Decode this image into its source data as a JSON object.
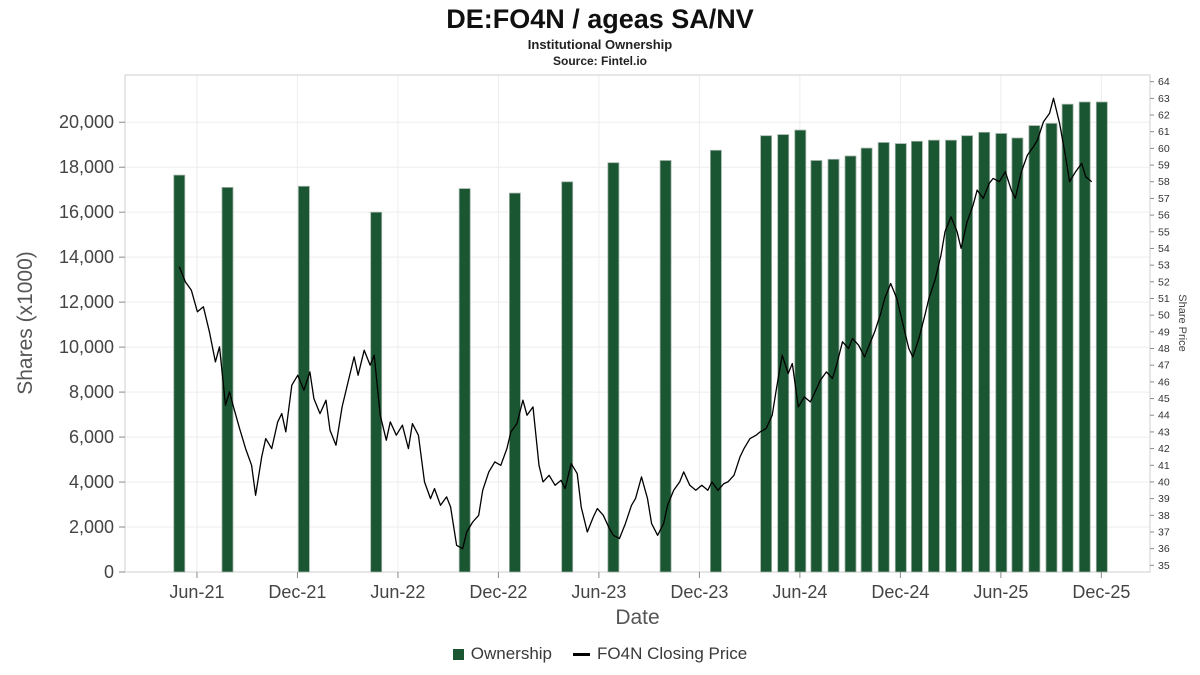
{
  "header": {
    "title": "DE:FO4N / ageas SA/NV",
    "subtitle": "Institutional Ownership",
    "source": "Source: Fintel.io"
  },
  "legend": {
    "ownership": "Ownership",
    "price": "FO4N Closing Price"
  },
  "chart_data": {
    "type": "bar",
    "title": "DE:FO4N / ageas SA/NV",
    "subtitle": "Institutional Ownership",
    "source": "Source: Fintel.io",
    "xlabel": "Date",
    "ylabel_left": "Shares (x1000)",
    "ylabel_right": "Share Price",
    "grid": true,
    "legend_position": "bottom",
    "x_domain": [
      2021.1,
      2026.2
    ],
    "x_ticks": [
      {
        "label": "Jun-21",
        "t": 2021.458
      },
      {
        "label": "Dec-21",
        "t": 2021.958
      },
      {
        "label": "Jun-22",
        "t": 2022.458
      },
      {
        "label": "Dec-22",
        "t": 2022.958
      },
      {
        "label": "Jun-23",
        "t": 2023.458
      },
      {
        "label": "Dec-23",
        "t": 2023.958
      },
      {
        "label": "Jun-24",
        "t": 2024.458
      },
      {
        "label": "Dec-24",
        "t": 2024.958
      },
      {
        "label": "Jun-25",
        "t": 2025.458
      },
      {
        "label": "Dec-25",
        "t": 2025.958
      }
    ],
    "y_left": {
      "domain": [
        0,
        22100
      ],
      "ticks": [
        0,
        2000,
        4000,
        6000,
        8000,
        10000,
        12000,
        14000,
        16000,
        18000,
        20000
      ],
      "labels": [
        "0",
        "2,000",
        "4,000",
        "6,000",
        "8,000",
        "10,000",
        "12,000",
        "14,000",
        "16,000",
        "18,000",
        "20,000"
      ]
    },
    "y_right": {
      "domain": [
        34.6,
        64.4
      ],
      "ticks": [
        35,
        36,
        37,
        38,
        39,
        40,
        41,
        42,
        43,
        44,
        45,
        46,
        47,
        48,
        49,
        50,
        51,
        52,
        53,
        54,
        55,
        56,
        57,
        58,
        59,
        60,
        61,
        62,
        63,
        64
      ]
    },
    "ownership_bars": {
      "name": "Ownership",
      "color": "#1a5632",
      "unit": "shares x1000",
      "dates": [
        "May-21",
        "Aug-21",
        "Dec-21",
        "May-22",
        "Oct-22",
        "Jan-23",
        "Apr-23",
        "Jul-23",
        "Oct-23",
        "Jan-24",
        "Apr-24",
        "May-24",
        "Jun-24",
        "Jul-24",
        "Aug-24",
        "Sep-24",
        "Oct-24",
        "Nov-24",
        "Dec-24",
        "Jan-25",
        "Feb-25",
        "Mar-25",
        "Apr-25",
        "May-25",
        "Jun-25",
        "Jul-25",
        "Aug-25",
        "Sep-25",
        "Oct-25",
        "Nov-25",
        "Dec-25"
      ],
      "t": [
        2021.37,
        2021.61,
        2021.99,
        2022.35,
        2022.79,
        2023.04,
        2023.3,
        2023.53,
        2023.79,
        2024.04,
        2024.29,
        2024.375,
        2024.46,
        2024.54,
        2024.625,
        2024.71,
        2024.79,
        2024.875,
        2024.96,
        2025.04,
        2025.125,
        2025.21,
        2025.29,
        2025.375,
        2025.46,
        2025.54,
        2025.625,
        2025.71,
        2025.79,
        2025.875,
        2025.96
      ],
      "values": [
        17650,
        17100,
        17150,
        16000,
        17050,
        16850,
        17350,
        18200,
        18300,
        18750,
        19400,
        19450,
        19650,
        18300,
        18350,
        18500,
        18850,
        19100,
        19050,
        19150,
        19200,
        19200,
        19400,
        19550,
        19500,
        19300,
        19850,
        19950,
        20800,
        20900,
        20900
      ]
    },
    "closing_price": {
      "name": "FO4N Closing Price",
      "color": "#000000",
      "t": [
        2021.37,
        2021.4,
        2021.43,
        2021.46,
        2021.49,
        2021.52,
        2021.55,
        2021.57,
        2021.6,
        2021.62,
        2021.64,
        2021.67,
        2021.7,
        2021.73,
        2021.75,
        2021.78,
        2021.8,
        2021.83,
        2021.86,
        2021.88,
        2021.9,
        2021.93,
        2021.96,
        2021.99,
        2022.02,
        2022.04,
        2022.07,
        2022.1,
        2022.12,
        2022.15,
        2022.18,
        2022.21,
        2022.24,
        2022.26,
        2022.29,
        2022.32,
        2022.34,
        2022.37,
        2022.4,
        2022.42,
        2022.45,
        2022.48,
        2022.51,
        2022.53,
        2022.56,
        2022.59,
        2022.62,
        2022.64,
        2022.67,
        2022.7,
        2022.72,
        2022.75,
        2022.78,
        2022.8,
        2022.83,
        2022.86,
        2022.88,
        2022.91,
        2022.94,
        2022.97,
        2023.0,
        2023.02,
        2023.05,
        2023.08,
        2023.1,
        2023.13,
        2023.16,
        2023.18,
        2023.21,
        2023.24,
        2023.27,
        2023.29,
        2023.32,
        2023.35,
        2023.37,
        2023.4,
        2023.43,
        2023.45,
        2023.48,
        2023.51,
        2023.53,
        2023.56,
        2023.59,
        2023.62,
        2023.64,
        2023.67,
        2023.7,
        2023.72,
        2023.75,
        2023.78,
        2023.8,
        2023.83,
        2023.86,
        2023.88,
        2023.91,
        2023.94,
        2023.97,
        2024.0,
        2024.02,
        2024.05,
        2024.08,
        2024.1,
        2024.13,
        2024.16,
        2024.18,
        2024.21,
        2024.24,
        2024.26,
        2024.29,
        2024.32,
        2024.34,
        2024.37,
        2024.4,
        2024.42,
        2024.45,
        2024.48,
        2024.51,
        2024.53,
        2024.56,
        2024.59,
        2024.62,
        2024.64,
        2024.67,
        2024.7,
        2024.72,
        2024.75,
        2024.78,
        2024.8,
        2024.83,
        2024.86,
        2024.88,
        2024.91,
        2024.94,
        2024.97,
        2025.0,
        2025.02,
        2025.05,
        2025.08,
        2025.1,
        2025.13,
        2025.16,
        2025.18,
        2025.21,
        2025.24,
        2025.26,
        2025.29,
        2025.32,
        2025.34,
        2025.37,
        2025.4,
        2025.42,
        2025.45,
        2025.48,
        2025.51,
        2025.53,
        2025.56,
        2025.59,
        2025.62,
        2025.64,
        2025.67,
        2025.7,
        2025.72,
        2025.75,
        2025.78,
        2025.8,
        2025.83,
        2025.86,
        2025.88,
        2025.91
      ],
      "price": [
        52.9,
        52.0,
        51.5,
        50.2,
        50.5,
        49.0,
        47.2,
        48.1,
        44.6,
        45.4,
        44.5,
        43.2,
        42.0,
        41.0,
        39.2,
        41.5,
        42.6,
        42.0,
        43.6,
        44.1,
        43.0,
        45.8,
        46.4,
        45.5,
        46.6,
        45.0,
        44.1,
        44.9,
        43.1,
        42.2,
        44.5,
        46.0,
        47.5,
        46.4,
        47.9,
        47.0,
        47.6,
        44.0,
        42.5,
        43.6,
        42.8,
        43.4,
        42.0,
        43.5,
        42.8,
        40.0,
        39.0,
        39.6,
        38.6,
        39.1,
        38.5,
        36.2,
        36.0,
        37.0,
        37.6,
        38.0,
        39.5,
        40.6,
        41.2,
        41.0,
        42.0,
        43.0,
        43.5,
        44.9,
        44.0,
        44.5,
        41.0,
        40.0,
        40.4,
        39.8,
        40.1,
        39.6,
        41.1,
        40.5,
        38.5,
        37.0,
        37.9,
        38.4,
        38.0,
        37.2,
        36.8,
        36.6,
        37.5,
        38.6,
        39.0,
        40.3,
        39.0,
        37.5,
        36.8,
        37.5,
        38.6,
        39.5,
        40.0,
        40.6,
        39.8,
        39.5,
        39.8,
        39.5,
        40.0,
        39.5,
        39.9,
        40.0,
        40.4,
        41.5,
        42.0,
        42.6,
        42.8,
        43.0,
        43.2,
        44.0,
        45.5,
        47.6,
        46.5,
        47.1,
        44.5,
        45.1,
        44.8,
        45.3,
        46.1,
        46.6,
        46.2,
        47.0,
        48.4,
        48.0,
        48.6,
        48.2,
        47.5,
        48.1,
        49.0,
        50.1,
        51.0,
        51.9,
        51.0,
        49.5,
        48.0,
        47.5,
        48.6,
        50.0,
        51.0,
        52.1,
        53.6,
        55.0,
        55.9,
        55.0,
        54.0,
        55.6,
        56.6,
        57.5,
        57.0,
        57.9,
        58.2,
        58.0,
        58.6,
        57.5,
        57.0,
        58.6,
        59.6,
        60.1,
        60.5,
        61.6,
        62.1,
        63.0,
        61.5,
        59.5,
        58.0,
        58.6,
        59.1,
        58.3,
        58.0
      ]
    }
  }
}
